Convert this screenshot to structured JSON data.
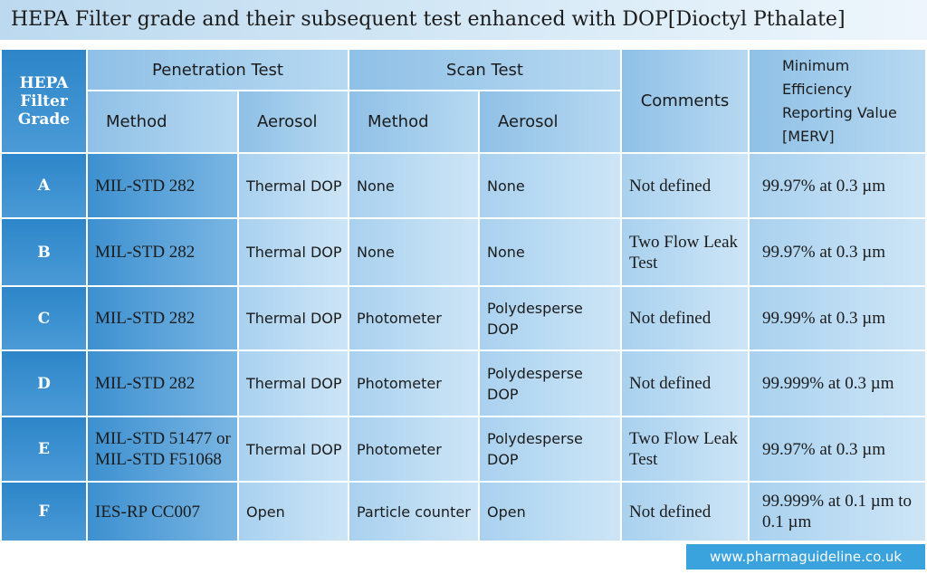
{
  "title": "HEPA Filter grade and their subsequent test enhanced with DOP[Dioctyl Pthalate]",
  "header": {
    "grade": "HEPA Filter Grade",
    "penetration_test": "Penetration Test",
    "scan_test": "Scan Test",
    "subcolumns": [
      "Method",
      "Aerosol",
      "Method",
      "Aerosol"
    ],
    "comments": "Comments",
    "merv": "Minimum Efficiency Reporting Value [MERV]"
  },
  "table": {
    "rows": [
      [
        "A",
        "MIL-STD 282",
        "Thermal DOP",
        "None",
        "None",
        "Not defined",
        "99.97%  at 0.3 µm"
      ],
      [
        "B",
        "MIL-STD 282",
        "Thermal DOP",
        "None",
        "None",
        "Two Flow Leak Test",
        "99.97%  at 0.3 µm"
      ],
      [
        "C",
        "MIL-STD 282",
        "Thermal DOP",
        "Photometer",
        "Polydesperse DOP",
        "Not defined",
        "99.99%  at 0.3 µm"
      ],
      [
        "D",
        "MIL-STD 282",
        "Thermal DOP",
        "Photometer",
        "Polydesperse DOP",
        "Not defined",
        "99.999%  at 0.3 µm"
      ],
      [
        "E",
        "MIL-STD 51477 or MIL-STD F51068",
        "Thermal DOP",
        "Photometer",
        "Polydesperse DOP",
        "Two Flow Leak Test",
        "99.97%  at 0.3 µm"
      ],
      [
        "F",
        "IES-RP CC007",
        "Open",
        "Particle counter",
        "Open",
        "Not defined",
        "99.999% at 0.1 µm to 0.1 µm"
      ]
    ]
  },
  "footer": "www.pharmaguideline.co.uk"
}
